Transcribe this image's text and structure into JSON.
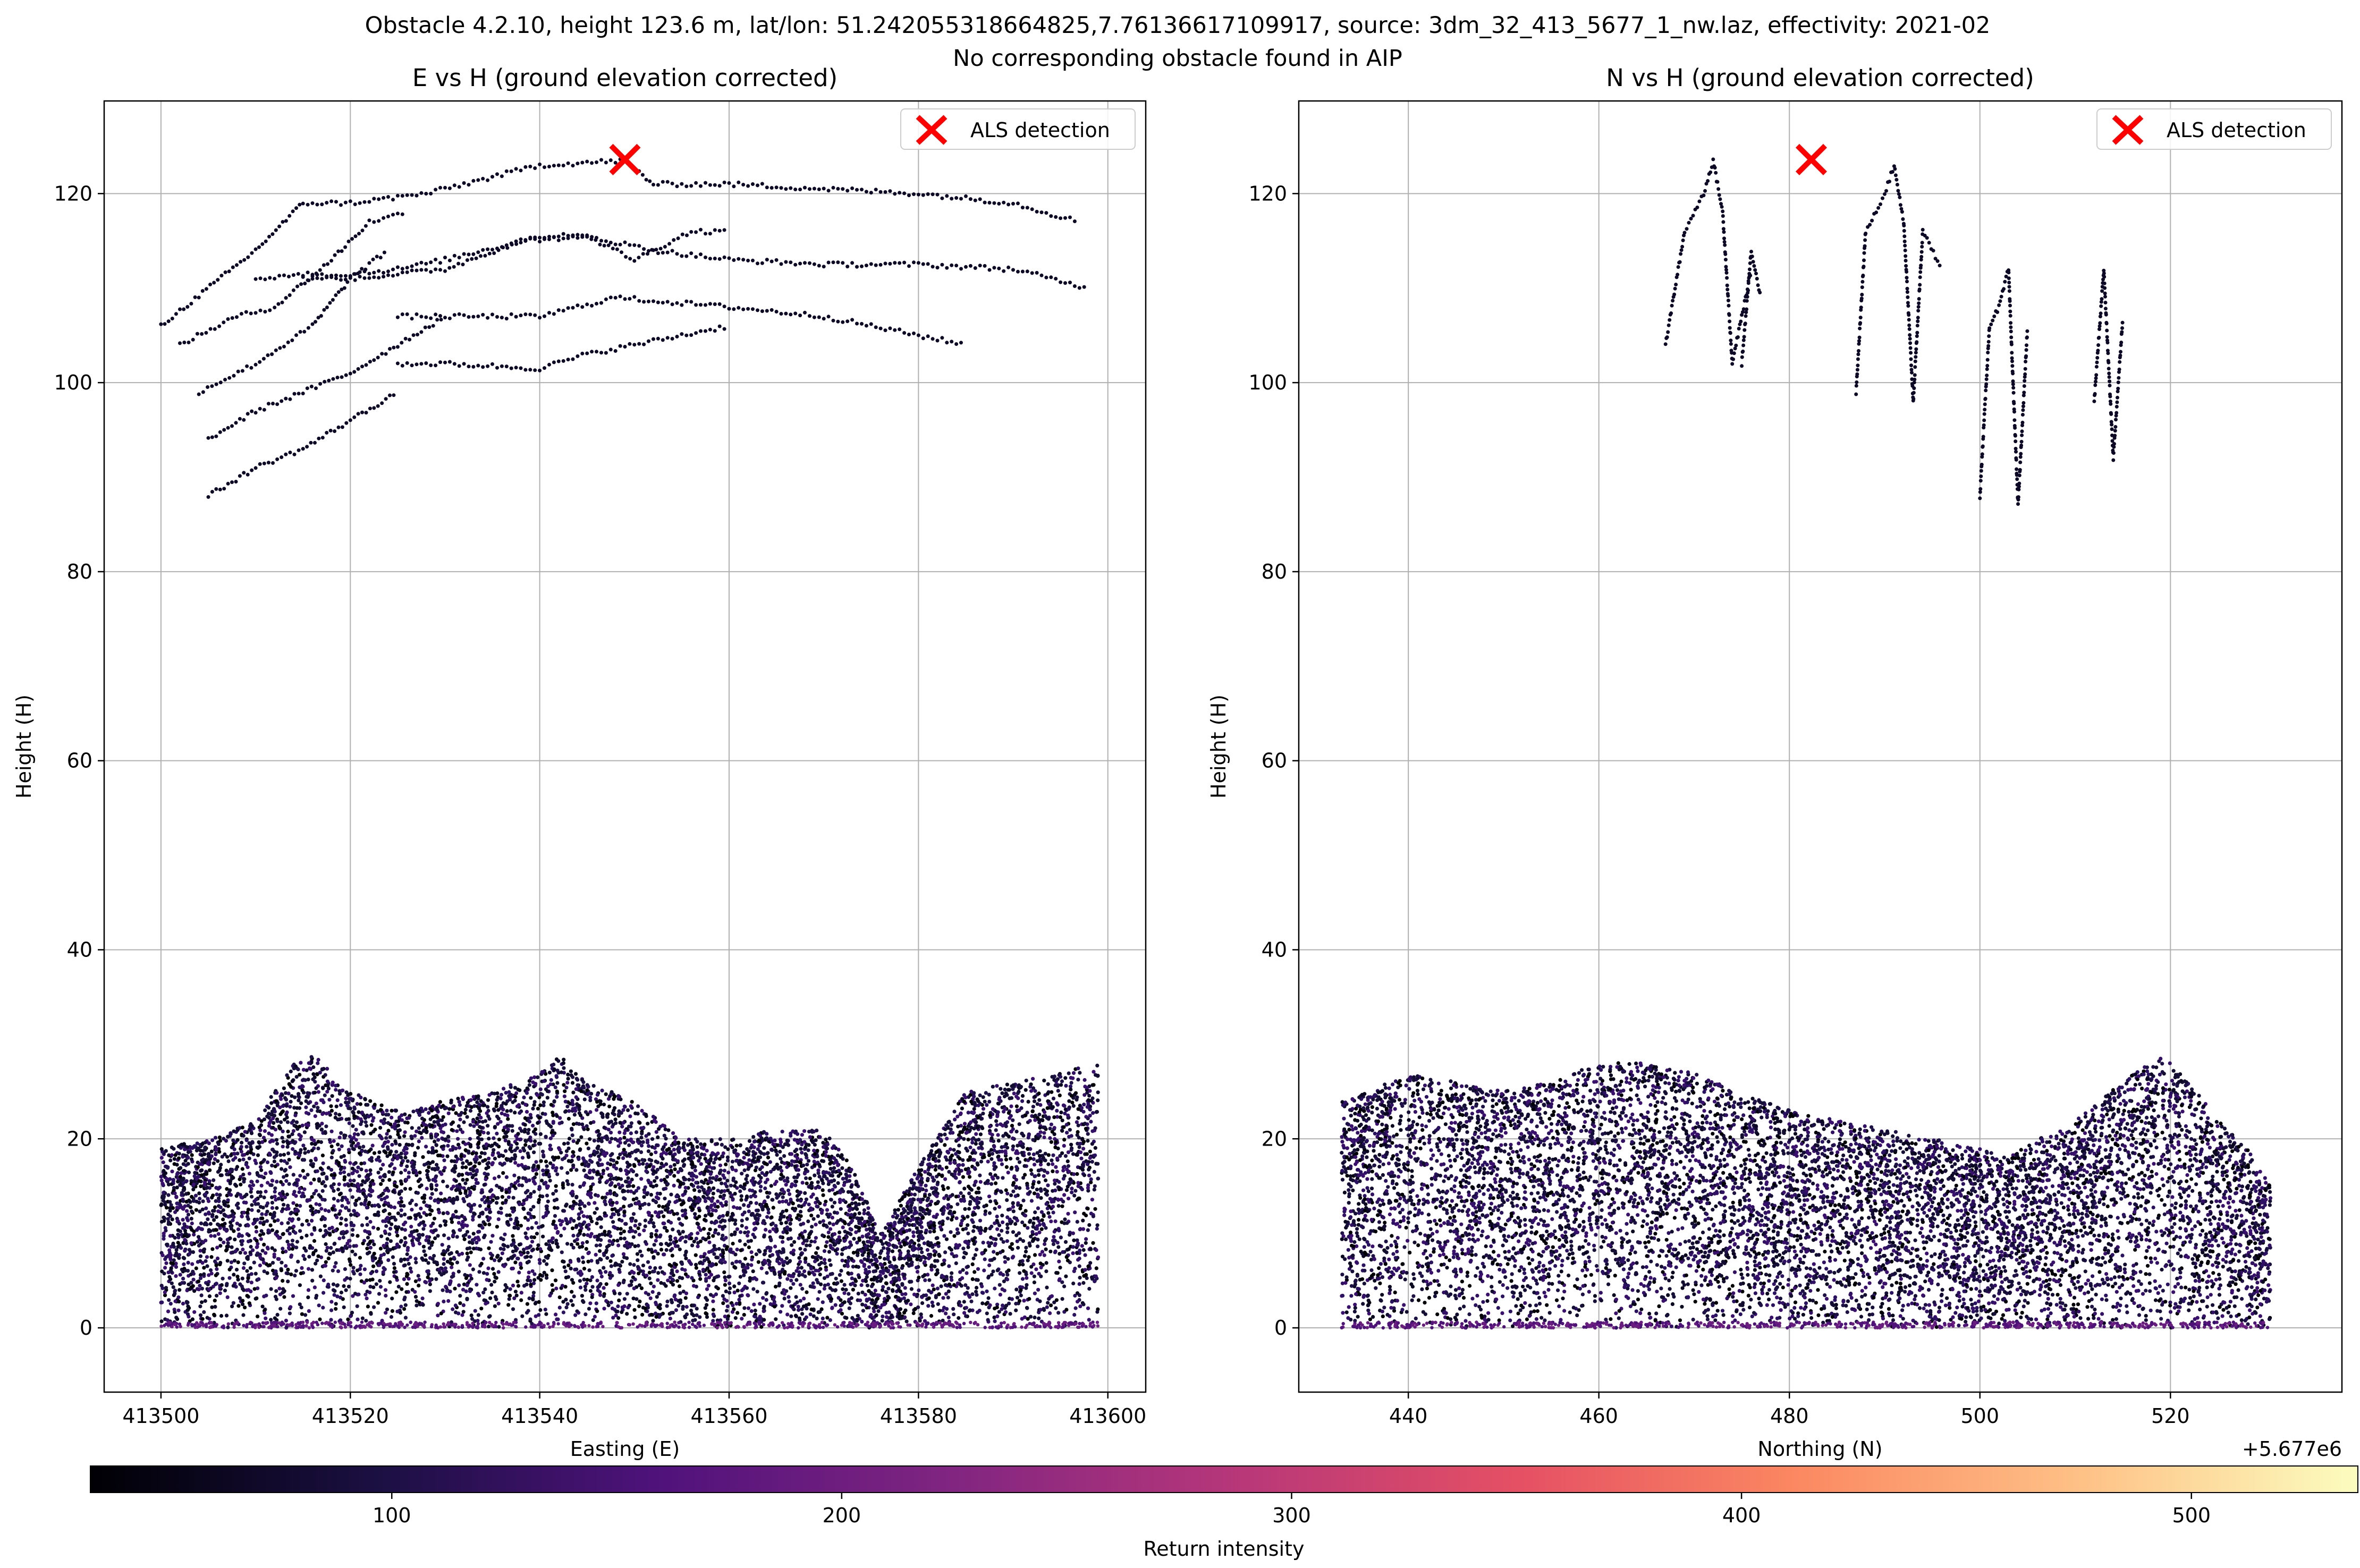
{
  "figure": {
    "suptitle_line1": "Obstacle 4.2.10, height 123.6 m, lat/lon: 51.242055318664825,7.76136617109917, source: 3dm_32_413_5677_1_nw.laz, effectivity: 2021-02",
    "suptitle_line2": "No corresponding obstacle found in AIP"
  },
  "chart_data": [
    {
      "type": "scatter",
      "title": "E vs H (ground elevation corrected)",
      "xlabel": "Easting (E)",
      "ylabel": "Height (H)",
      "xlim": [
        413494,
        413604
      ],
      "ylim": [
        -6.8,
        129.8
      ],
      "xticks": [
        413500,
        413520,
        413540,
        413560,
        413580,
        413600
      ],
      "xtick_labels": [
        "413500",
        "413520",
        "413540",
        "413560",
        "413580",
        "413600"
      ],
      "yticks": [
        0,
        20,
        40,
        60,
        80,
        100,
        120
      ],
      "ytick_labels": [
        "0",
        "20",
        "40",
        "60",
        "80",
        "100",
        "120"
      ],
      "grid": true,
      "legend_position": "top-right",
      "legend": [
        {
          "label": "ALS detection",
          "marker": "x",
          "color": "#ff0000"
        }
      ],
      "detection": {
        "x": 413549,
        "y": 123.6
      },
      "canopy_profile": {
        "x": [
          413500,
          413505,
          413510,
          413514,
          413516,
          413520,
          413525,
          413530,
          413535,
          413540,
          413542,
          413545,
          413550,
          413555,
          413560,
          413565,
          413570,
          413573,
          413576,
          413580,
          413585,
          413590,
          413595,
          413599
        ],
        "y": [
          19,
          20,
          22,
          28,
          29,
          25,
          23,
          24,
          25,
          27,
          29,
          26,
          24,
          20,
          20,
          21,
          21,
          17,
          10,
          17,
          25,
          26,
          27,
          28
        ]
      },
      "upper_line_segments": [
        {
          "x": [
            413500,
            413510,
            413515,
            413520,
            413528,
            413540,
            413549,
            413552,
            413560,
            413570,
            413580,
            413590,
            413597
          ],
          "y": [
            106,
            114,
            119,
            119,
            120,
            123,
            123.5,
            121,
            121,
            120.5,
            120,
            119,
            117
          ]
        },
        {
          "x": [
            413510,
            413515,
            413520,
            413530,
            413538,
            413545,
            413552,
            413560,
            413570,
            413580,
            413590,
            413598
          ],
          "y": [
            111,
            111.5,
            111,
            112,
            115,
            115.5,
            114,
            113,
            112.5,
            112.5,
            112,
            110
          ]
        },
        {
          "x": [
            413515,
            413525,
            413530,
            413540,
            413545,
            413550,
            413556,
            413560
          ],
          "y": [
            111,
            112,
            113,
            115.5,
            115.5,
            113,
            116,
            116
          ]
        },
        {
          "x": [
            413502,
            413508,
            413512,
            413518,
            413522,
            413526
          ],
          "y": [
            104,
            107,
            108,
            113,
            117,
            118
          ]
        },
        {
          "x": [
            413504,
            413510,
            413516,
            413520,
            413524
          ],
          "y": [
            99,
            102,
            106,
            111,
            114
          ]
        },
        {
          "x": [
            413505,
            413510,
            413515,
            413520,
            413525,
            413530
          ],
          "y": [
            94,
            97,
            99,
            101,
            104,
            107
          ]
        },
        {
          "x": [
            413505,
            413510,
            413515,
            413520,
            413525
          ],
          "y": [
            88,
            91,
            93,
            96,
            99
          ]
        },
        {
          "x": [
            413525,
            413530,
            413540,
            413548,
            413560,
            413570,
            413580,
            413585
          ],
          "y": [
            107,
            107,
            107,
            109,
            108,
            107,
            105,
            104
          ]
        },
        {
          "x": [
            413525,
            413530,
            413540,
            413545,
            413550,
            413555,
            413560
          ],
          "y": [
            102,
            102,
            101.5,
            103,
            104,
            105,
            106
          ]
        }
      ],
      "colorbar": {
        "label": "Return intensity",
        "range": [
          33,
          537
        ],
        "ticks": [
          100,
          200,
          300,
          400,
          500
        ],
        "tick_labels": [
          "100",
          "200",
          "300",
          "400",
          "500"
        ],
        "colormap": "magma"
      }
    },
    {
      "type": "scatter",
      "title": "N vs H (ground elevation corrected)",
      "xlabel": "Northing (N)",
      "ylabel": "Height (H)",
      "x_offset_label": "+5.677e6",
      "xlim": [
        428.5,
        538
      ],
      "ylim": [
        -6.8,
        129.8
      ],
      "xticks": [
        440,
        460,
        480,
        500,
        520
      ],
      "xtick_labels": [
        "440",
        "460",
        "480",
        "500",
        "520"
      ],
      "yticks": [
        0,
        20,
        40,
        60,
        80,
        100,
        120
      ],
      "ytick_labels": [
        "0",
        "20",
        "40",
        "60",
        "80",
        "100",
        "120"
      ],
      "grid": true,
      "legend_position": "top-right",
      "legend": [
        {
          "label": "ALS detection",
          "marker": "x",
          "color": "#ff0000"
        }
      ],
      "detection": {
        "x": 482.3,
        "y": 123.6
      },
      "canopy_profile": {
        "x": [
          433,
          436,
          440,
          445,
          450,
          455,
          460,
          465,
          470,
          475,
          480,
          485,
          490,
          495,
          500,
          503,
          506,
          510,
          515,
          519,
          522,
          525,
          528,
          530.5
        ],
        "y": [
          24,
          25,
          27,
          26,
          25,
          26,
          28,
          28,
          27,
          25,
          23,
          22,
          21,
          20,
          19,
          18,
          20,
          22,
          26,
          29,
          26,
          22,
          19,
          15
        ]
      },
      "upper_line_segments": [
        {
          "x": [
            467,
            469,
            471,
            472,
            473,
            474,
            476
          ],
          "y": [
            104,
            116,
            120,
            123.5,
            118,
            102,
            112
          ]
        },
        {
          "x": [
            475,
            476,
            477
          ],
          "y": [
            102,
            114,
            109
          ]
        },
        {
          "x": [
            487,
            488,
            490,
            491,
            492,
            493,
            494,
            496
          ],
          "y": [
            99,
            116,
            120,
            123,
            117,
            98,
            116,
            112
          ]
        },
        {
          "x": [
            500,
            501,
            502,
            503,
            504,
            505
          ],
          "y": [
            88,
            106,
            108,
            112,
            87,
            106
          ]
        },
        {
          "x": [
            512,
            513,
            514,
            515
          ],
          "y": [
            98,
            112,
            92,
            107
          ]
        }
      ],
      "colorbar": {
        "label": "Return intensity",
        "range": [
          33,
          537
        ],
        "ticks": [
          100,
          200,
          300,
          400,
          500
        ],
        "tick_labels": [
          "100",
          "200",
          "300",
          "400",
          "500"
        ],
        "colormap": "magma"
      }
    }
  ]
}
